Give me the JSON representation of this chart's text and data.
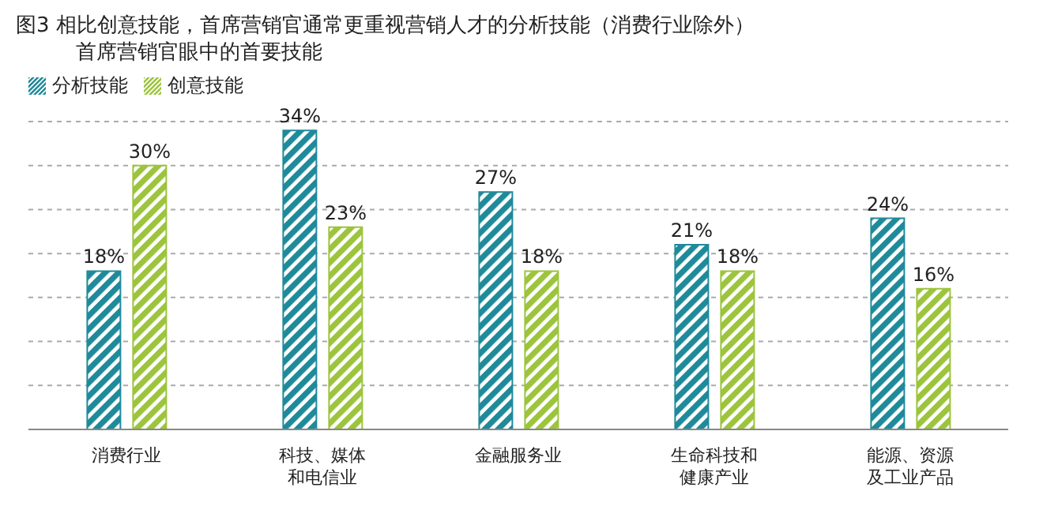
{
  "chart_data": {
    "type": "bar",
    "title": "图3 相比创意技能，首席营销官通常更重视营销人才的分析技能（消费行业除外）",
    "subtitle": "首席营销官眼中的首要技能",
    "categories": [
      "消费行业",
      "科技、媒体和电信业",
      "金融服务业",
      "生命科技和健康产业",
      "能源、资源及工业产品"
    ],
    "series": [
      {
        "name": "分析技能",
        "color": "#1f8a9a",
        "values": [
          18,
          34,
          27,
          21,
          24
        ],
        "value_labels": [
          "18%",
          "34%",
          "27%",
          "21%",
          "24%"
        ]
      },
      {
        "name": "创意技能",
        "color": "#9cc43c",
        "values": [
          30,
          23,
          18,
          18,
          16
        ],
        "value_labels": [
          "30%",
          "23%",
          "18%",
          "18%",
          "16%"
        ]
      }
    ],
    "ylim": [
      0,
      35
    ],
    "yticks": [
      {
        "value": 0,
        "label": null
      },
      {
        "value": 5,
        "label": null
      },
      {
        "value": 10,
        "label": null
      },
      {
        "value": 15,
        "label": null
      },
      {
        "value": 20,
        "label": null
      },
      {
        "value": 25,
        "label": null
      },
      {
        "value": 30,
        "label": null
      },
      {
        "value": 35,
        "label": null
      }
    ],
    "tick_labels": "x",
    "grid": "y",
    "legend": "top left"
  }
}
